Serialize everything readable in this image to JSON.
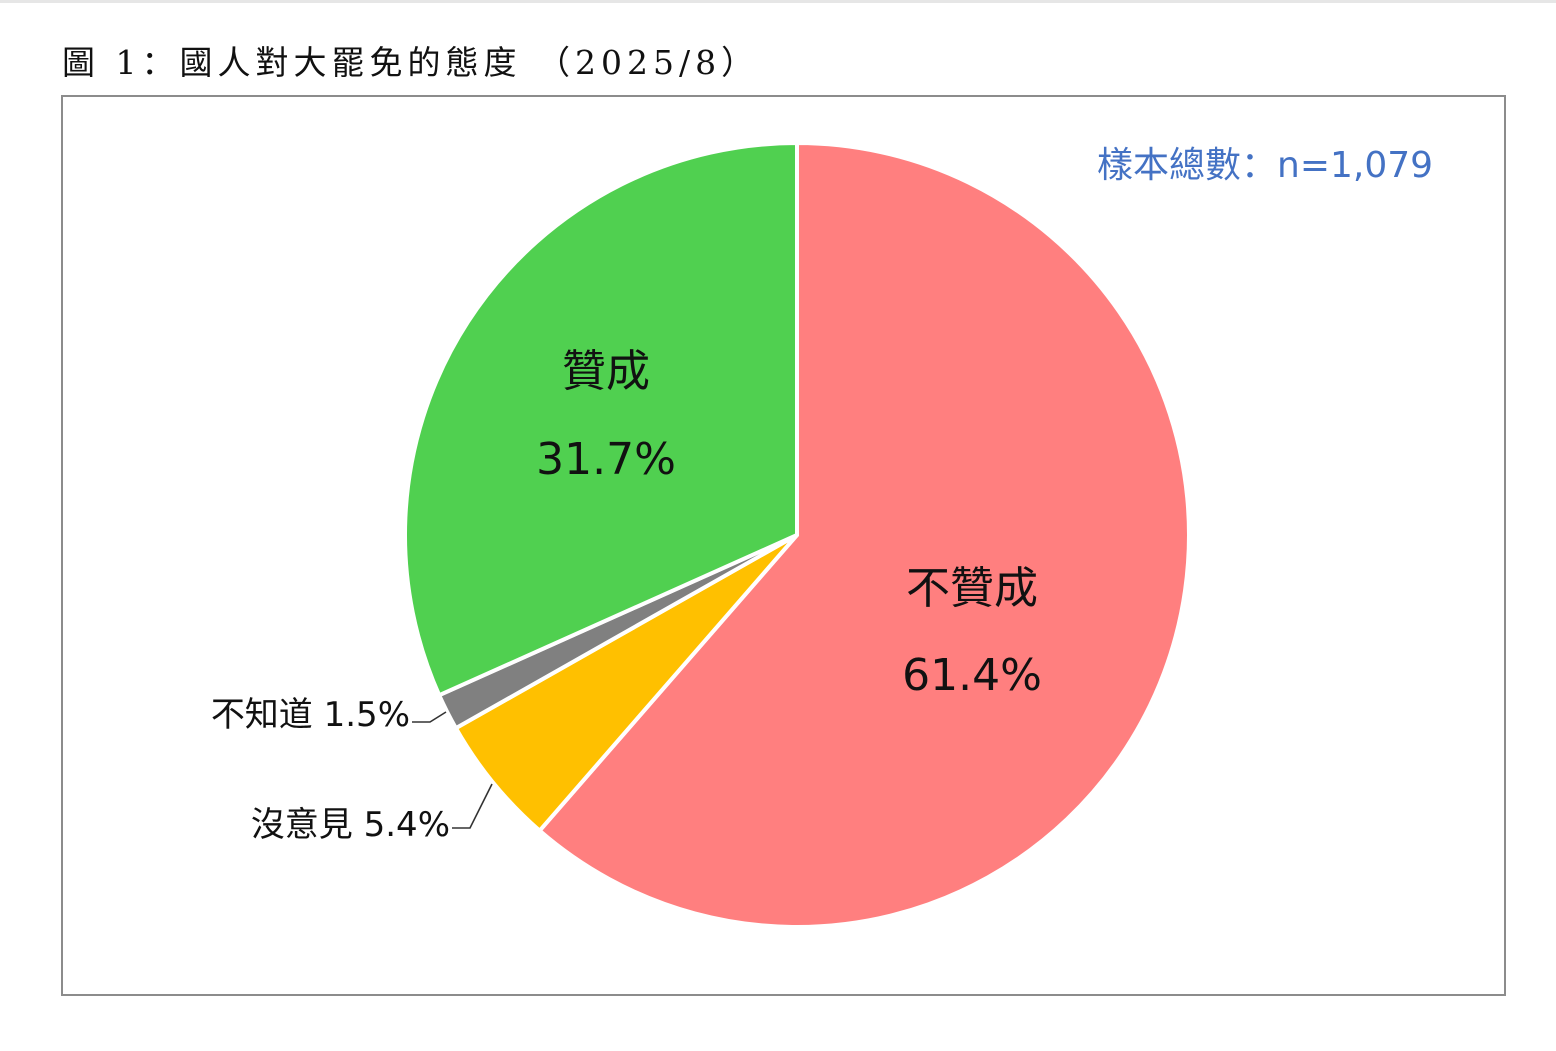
{
  "figure_caption": "圖 1：國人對大罷免的態度 （2025/8）",
  "sample_note": "樣本總數：n=1,079",
  "chart_data": {
    "type": "pie",
    "title": "圖 1：國人對大罷免的態度 （2025/8）",
    "annotation": "樣本總數：n=1,079",
    "slices": [
      {
        "label": "不贊成",
        "value": 61.4,
        "display": "61.4%",
        "color": "#ff7f7f",
        "label_placement": "inside"
      },
      {
        "label": "沒意見",
        "value": 5.4,
        "display": "5.4%",
        "color": "#ffc000",
        "label_placement": "outside-left"
      },
      {
        "label": "不知道",
        "value": 1.5,
        "display": "1.5%",
        "color": "#808080",
        "label_placement": "outside-left"
      },
      {
        "label": "贊成",
        "value": 31.7,
        "display": "31.7%",
        "color": "#50d050",
        "label_placement": "inside"
      }
    ],
    "start": "12 o'clock",
    "direction": "clockwise"
  }
}
